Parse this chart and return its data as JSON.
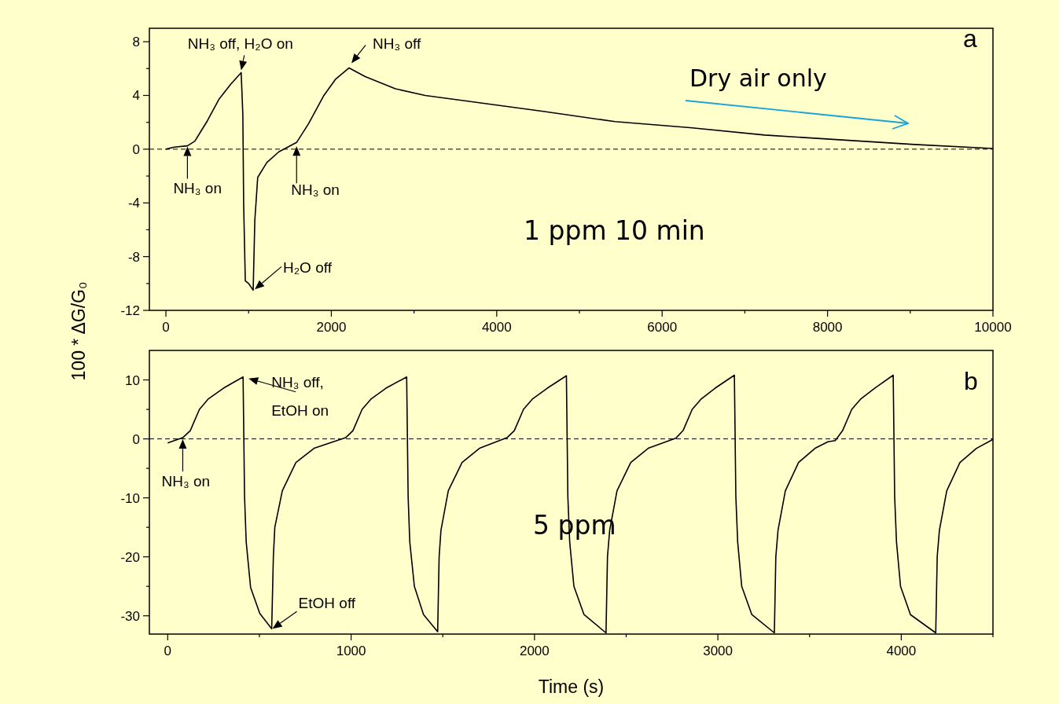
{
  "chart_data": [
    {
      "type": "line",
      "ylabel": "100 * ΔG/G₀",
      "xlim": [
        -200,
        10000
      ],
      "ylim": [
        -12,
        9
      ],
      "xticks": [
        0,
        {
          "value": 1000,
          "label": null
        },
        2000,
        {
          "value": 3000,
          "label": null
        },
        4000,
        {
          "value": 5000,
          "label": null
        },
        6000,
        {
          "value": 7000,
          "label": null
        },
        8000,
        {
          "value": 9000,
          "label": null
        },
        10000
      ],
      "yticks": [
        -12,
        {
          "value": -10,
          "label": null
        },
        -8,
        {
          "value": -6,
          "label": null
        },
        -4,
        {
          "value": -2,
          "label": null
        },
        0,
        {
          "value": 2,
          "label": null
        },
        4,
        {
          "value": 6,
          "label": null
        },
        8
      ],
      "series": [
        {
          "color": "#000000",
          "x": [
            0,
            100,
            260,
            350,
            500,
            640,
            785,
            910,
            930,
            940,
            960,
            1000,
            1055,
            1075,
            1110,
            1220,
            1365,
            1580,
            1725,
            1905,
            2050,
            2215,
            2410,
            2775,
            3135,
            3860,
            4580,
            5430,
            6340,
            7240,
            8140,
            9050,
            10000
          ],
          "values": [
            0,
            0.15,
            0.25,
            0.6,
            2.1,
            3.7,
            4.85,
            5.7,
            2.6,
            -4.1,
            -9.8,
            -10.0,
            -10.5,
            -5.3,
            -2.1,
            -1.0,
            -0.2,
            0.5,
            1.9,
            3.95,
            5.2,
            6.05,
            5.4,
            4.5,
            4.0,
            3.4,
            2.8,
            2.05,
            1.6,
            1.05,
            0.7,
            0.35,
            0.05
          ]
        }
      ],
      "ref_lines": [
        {
          "axis": "y",
          "value": 0,
          "color": "#000000",
          "line_style": "dashed"
        }
      ],
      "annotations": [
        {
          "text": "NH₃ on",
          "x": 260,
          "y": 0.25
        },
        {
          "text": "NH₃ off, H₂O on",
          "x": 910,
          "y": 5.7
        },
        {
          "text": "NH₃ on",
          "x": 1580,
          "y": 0.5
        },
        {
          "text": "NH₃ off",
          "x": 2215,
          "y": 6.05
        },
        {
          "text": "H₂O off",
          "x": 1055,
          "y": -10.5
        },
        "Dry air only",
        "1 ppm 10 min",
        "a"
      ],
      "grid": false
    },
    {
      "type": "line",
      "xlabel": "Time (s)",
      "xlim": [
        -100,
        4500
      ],
      "ylim": [
        -33.1,
        15
      ],
      "xticks": [
        0,
        {
          "value": 500,
          "label": null
        },
        1000,
        {
          "value": 1500,
          "label": null
        },
        2000,
        {
          "value": 2500,
          "label": null
        },
        3000,
        {
          "value": 3500,
          "label": null
        },
        4000,
        {
          "value": 4500,
          "label": null
        }
      ],
      "yticks": [
        -30,
        {
          "value": -25,
          "label": null
        },
        -20,
        {
          "value": -15,
          "label": null
        },
        -10,
        {
          "value": -5,
          "label": null
        },
        0,
        {
          "value": 5,
          "label": null
        },
        10
      ],
      "series": [
        {
          "color": "#000000",
          "x": [
            0,
            82,
            123,
            173,
            222,
            304,
            411,
            419,
            428,
            452,
            502,
            567,
            576,
            584,
            625,
            699,
            798,
            970,
            1010,
            1060,
            1110,
            1190,
            1303,
            1311,
            1320,
            1345,
            1395,
            1472,
            1480,
            1490,
            1530,
            1605,
            1700,
            1850,
            1890,
            1940,
            1990,
            2070,
            2174,
            2182,
            2192,
            2215,
            2270,
            2390,
            2398,
            2410,
            2450,
            2525,
            2620,
            2770,
            2810,
            2860,
            2910,
            2985,
            3090,
            3098,
            3108,
            3130,
            3185,
            3308,
            3316,
            3328,
            3368,
            3440,
            3530,
            3600,
            3640,
            3680,
            3730,
            3780,
            3855,
            3956,
            3964,
            3974,
            3996,
            4050,
            4188,
            4196,
            4208,
            4248,
            4320,
            4410,
            4500
          ],
          "values": [
            -0.7,
            0.2,
            1.4,
            5.0,
            6.8,
            8.6,
            10.5,
            -9.8,
            -17.5,
            -25.2,
            -29.6,
            -32.2,
            -20.1,
            -15,
            -8.8,
            -4,
            -1.6,
            0.2,
            1.4,
            5.0,
            6.8,
            8.6,
            10.5,
            -9.8,
            -17.5,
            -25,
            -29.8,
            -32.7,
            -20,
            -15.5,
            -8.8,
            -4,
            -1.6,
            0.2,
            1.4,
            5,
            6.8,
            8.6,
            10.7,
            -9.8,
            -17.5,
            -25,
            -29.8,
            -32.9,
            -20,
            -15.5,
            -8.8,
            -4,
            -1.6,
            0.1,
            1.4,
            5,
            6.8,
            8.6,
            10.8,
            -9.8,
            -17.5,
            -25,
            -29.8,
            -32.9,
            -20,
            -15.5,
            -8.8,
            -4,
            -1.6,
            -0.5,
            -0.3,
            1.4,
            5,
            6.8,
            8.6,
            10.8,
            -9.8,
            -17.5,
            -25,
            -29.8,
            -32.9,
            -20,
            -15.5,
            -8.8,
            -4,
            -1.6,
            -0.1
          ]
        }
      ],
      "ref_lines": [
        {
          "axis": "y",
          "value": 0,
          "color": "#000000",
          "line_style": "dashed"
        }
      ],
      "annotations": [
        {
          "text": "NH₃ on",
          "x": 82,
          "y": 0.2
        },
        {
          "text": "NH₃ off,\nEtOH on",
          "x": 411,
          "y": 10.5
        },
        {
          "text": "EtOH off",
          "x": 567,
          "y": -32.2
        },
        "5 ppm",
        "b"
      ],
      "grid": false
    }
  ]
}
